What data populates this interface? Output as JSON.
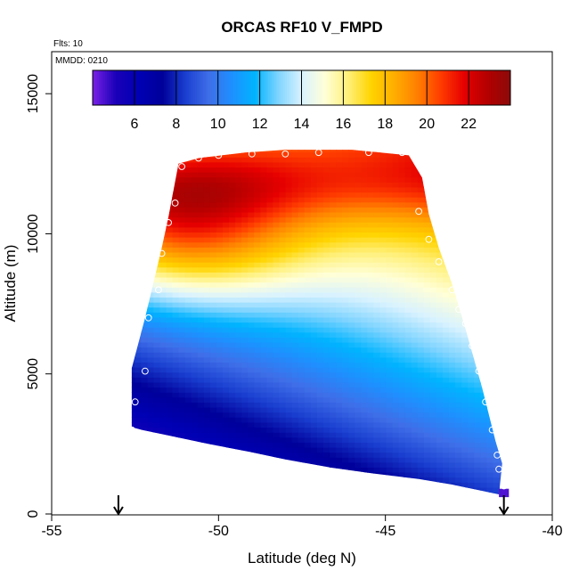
{
  "chart_data": {
    "type": "heatmap",
    "title": "ORCAS RF10 V_FMPD",
    "flights_label": "Flts: 10",
    "date_label": "MMDD: 0210",
    "xlabel": "Latitude (deg N)",
    "ylabel": "Altitude (m)",
    "xlim": [
      -55,
      -40
    ],
    "ylim": [
      0,
      16500
    ],
    "x_ticks": [
      -55,
      -50,
      -45,
      -40
    ],
    "y_ticks": [
      0,
      5000,
      10000,
      15000
    ],
    "colorbar": {
      "range": [
        4,
        24
      ],
      "ticks": [
        6,
        8,
        10,
        12,
        14,
        16,
        18,
        20,
        22
      ],
      "colors": [
        "#7a22e6",
        "#1a00b8",
        "#0000b4",
        "#00009a",
        "#1a3fd0",
        "#3f6ee8",
        "#1e90ff",
        "#00b4ff",
        "#7fd4ff",
        "#d8f2ff",
        "#ffffd8",
        "#fff07a",
        "#ffd400",
        "#ffae00",
        "#ff7f00",
        "#ff3c00",
        "#e60000",
        "#b40000",
        "#8b0a0a"
      ]
    },
    "domain_envelope": {
      "lower": [
        [
          -52.6,
          3100
        ],
        [
          -52.3,
          3000
        ],
        [
          -51.5,
          2800
        ],
        [
          -50.3,
          2500
        ],
        [
          -49.0,
          2200
        ],
        [
          -48.0,
          1950
        ],
        [
          -46.6,
          1650
        ],
        [
          -45.4,
          1450
        ],
        [
          -44.0,
          1250
        ],
        [
          -43.0,
          1050
        ],
        [
          -41.6,
          700
        ]
      ],
      "upper": [
        [
          -52.6,
          5200
        ],
        [
          -52.2,
          7000
        ],
        [
          -52.0,
          8000
        ],
        [
          -51.7,
          9500
        ],
        [
          -51.5,
          10600
        ],
        [
          -51.2,
          12500
        ],
        [
          -50.6,
          12700
        ],
        [
          -49.2,
          12900
        ],
        [
          -48.0,
          13000
        ],
        [
          -46.0,
          13000
        ],
        [
          -44.3,
          12800
        ],
        [
          -43.9,
          12000
        ],
        [
          -43.7,
          10700
        ],
        [
          -43.4,
          9500
        ],
        [
          -43.0,
          8200
        ],
        [
          -42.6,
          6600
        ],
        [
          -42.1,
          4500
        ],
        [
          -41.7,
          2600
        ],
        [
          -41.5,
          1800
        ]
      ]
    },
    "points": [
      [
        -52.6,
        3000
      ],
      [
        -52.5,
        4000
      ],
      [
        -52.2,
        5100
      ],
      [
        -52.1,
        7000
      ],
      [
        -51.8,
        8000
      ],
      [
        -51.7,
        9300
      ],
      [
        -51.5,
        10400
      ],
      [
        -51.3,
        11100
      ],
      [
        -51.1,
        12400
      ],
      [
        -50.6,
        12700
      ],
      [
        -50.0,
        12800
      ],
      [
        -49.0,
        12850
      ],
      [
        -48.0,
        12850
      ],
      [
        -47.0,
        12900
      ],
      [
        -45.5,
        12900
      ],
      [
        -44.5,
        12900
      ],
      [
        -44.0,
        10800
      ],
      [
        -43.7,
        9800
      ],
      [
        -43.4,
        9000
      ],
      [
        -43.0,
        8000
      ],
      [
        -42.8,
        7300
      ],
      [
        -42.6,
        6800
      ],
      [
        -42.4,
        6000
      ],
      [
        -42.2,
        5100
      ],
      [
        -42.0,
        4000
      ],
      [
        -41.8,
        3000
      ],
      [
        -41.65,
        2100
      ],
      [
        -41.6,
        1600
      ],
      [
        -41.45,
        1000
      ]
    ],
    "flight_markers": [
      -53.0,
      -41.45
    ]
  }
}
